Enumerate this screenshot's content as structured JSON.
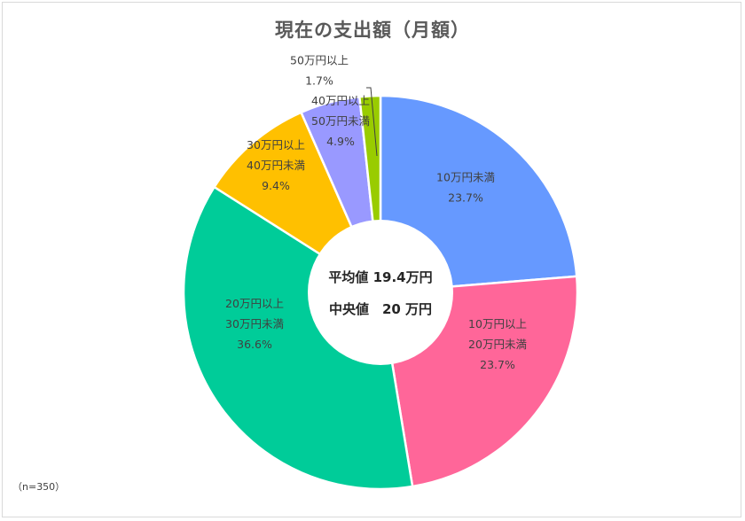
{
  "chart_data": {
    "type": "pie",
    "title": "現在の支出額（月額）",
    "note": "（n=350）",
    "center_lines": [
      "平均値 19.4万円",
      "中央値　20 万円"
    ],
    "slices": [
      {
        "label_lines": [
          "10万円未満"
        ],
        "value_text": "23.7%",
        "value": 23.7,
        "color": "#6699ff"
      },
      {
        "label_lines": [
          "10万円以上",
          "20万円未満"
        ],
        "value_text": "23.7%",
        "value": 23.7,
        "color": "#ff6699"
      },
      {
        "label_lines": [
          "20万円以上",
          "30万円未満"
        ],
        "value_text": "36.6%",
        "value": 36.6,
        "color": "#00cc99"
      },
      {
        "label_lines": [
          "30万円以上",
          "40万円未満"
        ],
        "value_text": "9.4%",
        "value": 9.4,
        "color": "#ffc000"
      },
      {
        "label_lines": [
          "40万円以上",
          "50万円未満"
        ],
        "value_text": "4.9%",
        "value": 4.9,
        "color": "#9999ff"
      },
      {
        "label_lines": [
          "50万円以上"
        ],
        "value_text": "1.7%",
        "value": 1.7,
        "color": "#99cc00"
      }
    ]
  }
}
